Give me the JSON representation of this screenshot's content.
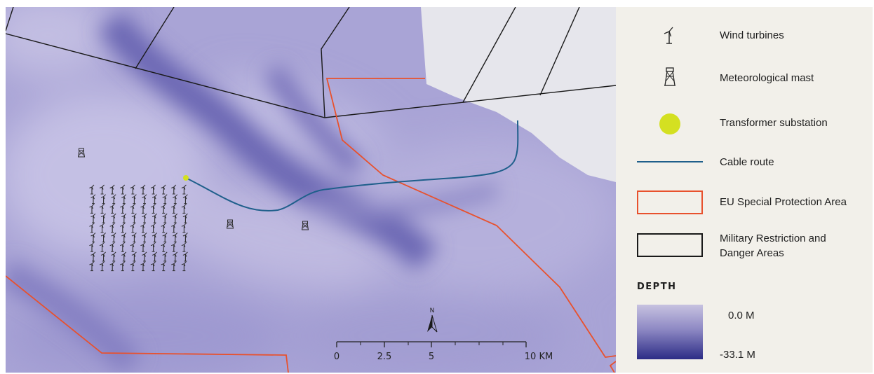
{
  "legend": {
    "items": [
      {
        "symbol": "wind-turbine-icon",
        "label": "Wind turbines"
      },
      {
        "symbol": "met-mast-icon",
        "label": "Meteorological mast"
      },
      {
        "symbol": "substation-dot",
        "label": "Transformer substation"
      },
      {
        "symbol": "cable-line",
        "label": "Cable route"
      },
      {
        "symbol": "spa-box",
        "label": "EU Special Protection Area"
      },
      {
        "symbol": "military-box",
        "label": "Military Restriction and Danger Areas"
      }
    ],
    "depth": {
      "title": "DEPTH",
      "max_label": "0.0 M",
      "min_label": "-33.1 M"
    }
  },
  "map": {
    "scale_bar": {
      "labels": [
        "0",
        "2.5",
        "5",
        "10 KM"
      ]
    },
    "north_label": "N",
    "turbine_grid": {
      "rows": 9,
      "cols": 10
    },
    "met_mast_count": 3
  },
  "colors": {
    "sea_shallow": "#c7c2e0",
    "sea_deep": "#2c2c86",
    "land": "#e6e6ec",
    "spa_line": "#e8512d",
    "cable_line": "#1f5f8b",
    "military_line": "#1a1a1a",
    "substation": "#d4e021",
    "legend_bg": "#f2f0ea"
  }
}
